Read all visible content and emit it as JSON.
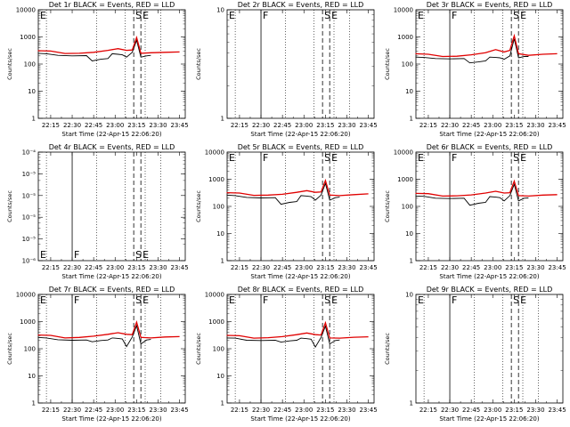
{
  "page": {
    "background": "#ffffff"
  },
  "colors": {
    "events": "#000000",
    "lld": "#e00000",
    "axis": "#000000"
  },
  "chart_data": [
    {
      "type": "line",
      "title": "Det 1r BLACK = Events, RED = LLD",
      "xlabel": "Start Time (22-Apr-15 22:06:20)",
      "ylabel": "Counts/sec",
      "x_ticks": [
        "22:15",
        "22:30",
        "22:45",
        "23:00",
        "23:15",
        "23:30",
        "23:45"
      ],
      "xlim": [
        "22:06:20",
        "23:49"
      ],
      "ylim": [
        1,
        10000
      ],
      "yscale": "log",
      "y_ticks": [
        "1",
        "10",
        "100",
        "1000",
        "10000"
      ],
      "markers": [
        {
          "label": "E",
          "time": "22:06:20"
        },
        {
          "label": "S",
          "time": "23:13"
        },
        {
          "label": "E",
          "time": "23:18"
        }
      ],
      "series": [
        {
          "name": "Events",
          "color": "#000000",
          "x": [
            "22:06",
            "22:12",
            "22:20",
            "22:30",
            "22:40",
            "22:44",
            "22:50",
            "22:55",
            "22:58",
            "23:02",
            "23:05",
            "23:08",
            "23:12",
            "23:15",
            "23:18",
            "23:22",
            "23:25"
          ],
          "values": [
            250,
            240,
            210,
            200,
            205,
            130,
            150,
            160,
            240,
            230,
            220,
            180,
            270,
            750,
            180,
            200,
            210
          ]
        },
        {
          "name": "LLD",
          "color": "#e00000",
          "x": [
            "22:06",
            "22:15",
            "22:25",
            "22:35",
            "22:45",
            "22:55",
            "23:02",
            "23:08",
            "23:12",
            "23:15",
            "23:18",
            "23:25",
            "23:35",
            "23:45"
          ],
          "values": [
            310,
            300,
            245,
            250,
            270,
            320,
            370,
            320,
            330,
            950,
            250,
            260,
            270,
            280
          ]
        }
      ]
    },
    {
      "type": "line",
      "title": "Det 2r BLACK = Events, RED = LLD",
      "xlabel": "Start Time (22-Apr-15 22:06:20)",
      "ylabel": "Counts/sec",
      "x_ticks": [
        "22:15",
        "22:30",
        "22:45",
        "23:00",
        "23:15",
        "23:30",
        "23:45"
      ],
      "xlim": [
        "22:06:20",
        "23:49"
      ],
      "ylim": [
        1,
        10
      ],
      "yscale": "log",
      "y_ticks": [
        "1",
        "10"
      ],
      "markers": [
        {
          "label": "E",
          "time": "22:06:20"
        },
        {
          "label": "F",
          "time": "22:30"
        },
        {
          "label": "S",
          "time": "23:13"
        },
        {
          "label": "E",
          "time": "23:18"
        }
      ],
      "series": []
    },
    {
      "type": "line",
      "title": "Det 3r BLACK = Events, RED = LLD",
      "xlabel": "Start Time (22-Apr-15 22:06:20)",
      "ylabel": "Counts/sec",
      "x_ticks": [
        "22:15",
        "22:30",
        "22:45",
        "23:00",
        "23:15",
        "23:30",
        "23:45"
      ],
      "xlim": [
        "22:06:20",
        "23:49"
      ],
      "ylim": [
        1,
        10000
      ],
      "yscale": "log",
      "y_ticks": [
        "1",
        "10",
        "100",
        "1000",
        "10000"
      ],
      "markers": [
        {
          "label": "E",
          "time": "22:06:20"
        },
        {
          "label": "F",
          "time": "22:30"
        },
        {
          "label": "S",
          "time": "23:13"
        },
        {
          "label": "E",
          "time": "23:18"
        }
      ],
      "series": [
        {
          "name": "Events",
          "color": "#000000",
          "x": [
            "22:06",
            "22:12",
            "22:20",
            "22:30",
            "22:40",
            "22:44",
            "22:50",
            "22:55",
            "22:58",
            "23:02",
            "23:05",
            "23:08",
            "23:12",
            "23:15",
            "23:18",
            "23:22",
            "23:25"
          ],
          "values": [
            180,
            175,
            160,
            155,
            160,
            110,
            120,
            130,
            180,
            175,
            170,
            150,
            200,
            850,
            170,
            190,
            190
          ]
        },
        {
          "name": "LLD",
          "color": "#e00000",
          "x": [
            "22:06",
            "22:15",
            "22:25",
            "22:35",
            "22:45",
            "22:55",
            "23:02",
            "23:08",
            "23:12",
            "23:15",
            "23:18",
            "23:25",
            "23:35",
            "23:45"
          ],
          "values": [
            240,
            230,
            190,
            195,
            220,
            260,
            340,
            280,
            320,
            1100,
            240,
            210,
            230,
            240
          ]
        }
      ]
    },
    {
      "type": "line",
      "title": "Det 4r BLACK = Events, RED = LLD",
      "xlabel": "Start Time (22-Apr-15 22:06:20)",
      "ylabel": "Counts/sec",
      "x_ticks": [
        "22:15",
        "22:30",
        "22:45",
        "23:00",
        "23:15",
        "23:30",
        "23:45"
      ],
      "xlim": [
        "22:06:20",
        "23:49"
      ],
      "ylim": [
        1e-06,
        0.0001
      ],
      "yscale": "log",
      "y_ticks": [
        "10⁻⁶",
        "10⁻⁵",
        "10⁻⁵",
        "10⁻⁵",
        "10⁻⁵",
        "10⁻⁴"
      ],
      "markers": [
        {
          "label": "E",
          "time": "22:06:20"
        },
        {
          "label": "F",
          "time": "22:30"
        },
        {
          "label": "S",
          "time": "23:13"
        },
        {
          "label": "E",
          "time": "23:18"
        }
      ],
      "series": []
    },
    {
      "type": "line",
      "title": "Det 5r BLACK = Events, RED = LLD",
      "xlabel": "Start Time (22-Apr-15 22:06:20)",
      "ylabel": "Counts/sec",
      "x_ticks": [
        "22:15",
        "22:30",
        "22:45",
        "23:00",
        "23:15",
        "23:30",
        "23:45"
      ],
      "xlim": [
        "22:06:20",
        "23:49"
      ],
      "ylim": [
        1,
        10000
      ],
      "yscale": "log",
      "y_ticks": [
        "1",
        "10",
        "100",
        "1000",
        "10000"
      ],
      "markers": [
        {
          "label": "E",
          "time": "22:06:20"
        },
        {
          "label": "F",
          "time": "22:30"
        },
        {
          "label": "S",
          "time": "23:13"
        },
        {
          "label": "E",
          "time": "23:18"
        }
      ],
      "series": [
        {
          "name": "Events",
          "color": "#000000",
          "x": [
            "22:06",
            "22:12",
            "22:20",
            "22:30",
            "22:40",
            "22:44",
            "22:50",
            "22:55",
            "22:58",
            "23:02",
            "23:05",
            "23:08",
            "23:12",
            "23:15",
            "23:18",
            "23:22",
            "23:25"
          ],
          "values": [
            260,
            250,
            215,
            205,
            210,
            120,
            140,
            150,
            250,
            240,
            230,
            170,
            260,
            700,
            170,
            210,
            220
          ]
        },
        {
          "name": "LLD",
          "color": "#e00000",
          "x": [
            "22:06",
            "22:15",
            "22:25",
            "22:35",
            "22:45",
            "22:55",
            "23:02",
            "23:08",
            "23:12",
            "23:15",
            "23:18",
            "23:25",
            "23:35",
            "23:45"
          ],
          "values": [
            320,
            310,
            255,
            260,
            280,
            330,
            380,
            330,
            340,
            900,
            260,
            250,
            270,
            290
          ]
        }
      ]
    },
    {
      "type": "line",
      "title": "Det 6r BLACK = Events, RED = LLD",
      "xlabel": "Start Time (22-Apr-15 22:06:20)",
      "ylabel": "Counts/sec",
      "x_ticks": [
        "22:15",
        "22:30",
        "22:45",
        "23:00",
        "23:15",
        "23:30",
        "23:45"
      ],
      "xlim": [
        "22:06:20",
        "23:49"
      ],
      "ylim": [
        1,
        10000
      ],
      "yscale": "log",
      "y_ticks": [
        "1",
        "10",
        "100",
        "1000",
        "10000"
      ],
      "markers": [
        {
          "label": "E",
          "time": "22:06:20"
        },
        {
          "label": "F",
          "time": "22:30"
        },
        {
          "label": "S",
          "time": "23:13"
        },
        {
          "label": "E",
          "time": "23:18"
        }
      ],
      "series": [
        {
          "name": "Events",
          "color": "#000000",
          "x": [
            "22:06",
            "22:12",
            "22:20",
            "22:30",
            "22:40",
            "22:44",
            "22:50",
            "22:55",
            "22:58",
            "23:02",
            "23:05",
            "23:08",
            "23:12",
            "23:15",
            "23:18",
            "23:22",
            "23:25"
          ],
          "values": [
            240,
            235,
            200,
            195,
            200,
            110,
            130,
            140,
            230,
            220,
            210,
            160,
            250,
            650,
            160,
            200,
            205
          ]
        },
        {
          "name": "LLD",
          "color": "#e00000",
          "x": [
            "22:06",
            "22:15",
            "22:25",
            "22:35",
            "22:45",
            "22:55",
            "23:02",
            "23:08",
            "23:12",
            "23:15",
            "23:18",
            "23:25",
            "23:35",
            "23:45"
          ],
          "values": [
            300,
            295,
            240,
            245,
            265,
            310,
            360,
            310,
            320,
            850,
            250,
            240,
            260,
            270
          ]
        }
      ]
    },
    {
      "type": "line",
      "title": "Det 7r BLACK = Events, RED = LLD",
      "xlabel": "Start Time (22-Apr-15 22:06:20)",
      "ylabel": "Counts/sec",
      "x_ticks": [
        "22:15",
        "22:30",
        "22:45",
        "23:00",
        "23:15",
        "23:30",
        "23:45"
      ],
      "xlim": [
        "22:06:20",
        "23:49"
      ],
      "ylim": [
        1,
        10000
      ],
      "yscale": "log",
      "y_ticks": [
        "1",
        "10",
        "100",
        "1000",
        "10000"
      ],
      "markers": [
        {
          "label": "E",
          "time": "22:06:20"
        },
        {
          "label": "F",
          "time": "22:30"
        },
        {
          "label": "S",
          "time": "23:13"
        },
        {
          "label": "E",
          "time": "23:18"
        }
      ],
      "series": [
        {
          "name": "Events",
          "color": "#000000",
          "x": [
            "22:06",
            "22:12",
            "22:20",
            "22:30",
            "22:40",
            "22:44",
            "22:50",
            "22:55",
            "22:58",
            "23:02",
            "23:05",
            "23:08",
            "23:12",
            "23:15",
            "23:18",
            "23:22",
            "23:25"
          ],
          "values": [
            260,
            250,
            215,
            205,
            210,
            180,
            200,
            210,
            250,
            240,
            230,
            120,
            270,
            700,
            150,
            210,
            220
          ]
        },
        {
          "name": "LLD",
          "color": "#e00000",
          "x": [
            "22:06",
            "22:15",
            "22:25",
            "22:35",
            "22:45",
            "22:55",
            "23:02",
            "23:08",
            "23:12",
            "23:15",
            "23:18",
            "23:25",
            "23:35",
            "23:45"
          ],
          "values": [
            320,
            310,
            250,
            260,
            290,
            340,
            390,
            340,
            330,
            950,
            260,
            250,
            270,
            280
          ]
        }
      ]
    },
    {
      "type": "line",
      "title": "Det 8r BLACK = Events, RED = LLD",
      "xlabel": "Start Time (22-Apr-15 22:06:20)",
      "ylabel": "Counts/sec",
      "x_ticks": [
        "22:15",
        "22:30",
        "22:45",
        "23:00",
        "23:15",
        "23:30",
        "23:45"
      ],
      "xlim": [
        "22:06:20",
        "23:49"
      ],
      "ylim": [
        1,
        10000
      ],
      "yscale": "log",
      "y_ticks": [
        "1",
        "10",
        "100",
        "1000",
        "10000"
      ],
      "markers": [
        {
          "label": "E",
          "time": "22:06:20"
        },
        {
          "label": "F",
          "time": "22:30"
        },
        {
          "label": "S",
          "time": "23:13"
        },
        {
          "label": "E",
          "time": "23:18"
        }
      ],
      "series": [
        {
          "name": "Events",
          "color": "#000000",
          "x": [
            "22:06",
            "22:12",
            "22:20",
            "22:30",
            "22:40",
            "22:44",
            "22:50",
            "22:55",
            "22:58",
            "23:02",
            "23:05",
            "23:08",
            "23:12",
            "23:15",
            "23:18",
            "23:22",
            "23:25"
          ],
          "values": [
            250,
            245,
            205,
            200,
            205,
            175,
            195,
            205,
            245,
            235,
            225,
            115,
            260,
            680,
            150,
            200,
            210
          ]
        },
        {
          "name": "LLD",
          "color": "#e00000",
          "x": [
            "22:06",
            "22:15",
            "22:25",
            "22:35",
            "22:45",
            "22:55",
            "23:02",
            "23:08",
            "23:12",
            "23:15",
            "23:18",
            "23:25",
            "23:35",
            "23:45"
          ],
          "values": [
            310,
            300,
            245,
            255,
            280,
            330,
            380,
            330,
            320,
            900,
            250,
            245,
            265,
            275
          ]
        }
      ]
    },
    {
      "type": "line",
      "title": "Det 9r BLACK = Events, RED = LLD",
      "xlabel": "Start Time (22-Apr-15 22:06:20)",
      "ylabel": "Counts/sec",
      "x_ticks": [
        "22:15",
        "22:30",
        "22:45",
        "23:00",
        "23:15",
        "23:30",
        "23:45"
      ],
      "xlim": [
        "22:06:20",
        "23:49"
      ],
      "ylim": [
        1,
        10
      ],
      "yscale": "log",
      "y_ticks": [
        "1",
        "10"
      ],
      "markers": [
        {
          "label": "E",
          "time": "22:06:20"
        },
        {
          "label": "F",
          "time": "22:30"
        },
        {
          "label": "S",
          "time": "23:13"
        },
        {
          "label": "E",
          "time": "23:18"
        }
      ],
      "series": []
    }
  ]
}
